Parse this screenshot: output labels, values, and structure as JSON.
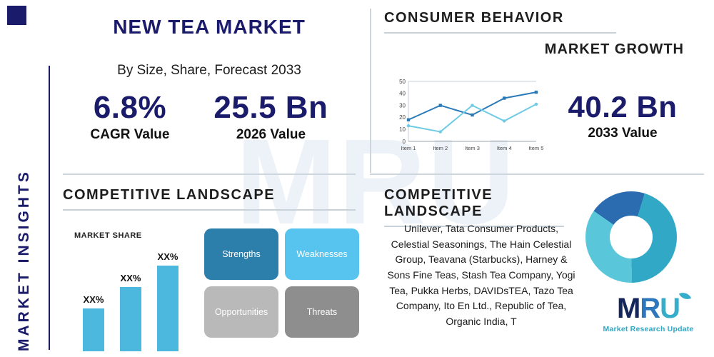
{
  "watermark": "MRU",
  "sidebar": {
    "vertical_title": "MARKET INSIGHTS"
  },
  "top_left": {
    "title": "NEW TEA MARKET",
    "subtitle": "By Size, Share, Forecast 2033",
    "cagr_value": "6.8%",
    "cagr_label": "CAGR Value",
    "value_2026": "25.5 Bn",
    "value_2026_label": "2026 Value"
  },
  "top_right": {
    "heading": "CONSUMER BEHAVIOR",
    "subheading": "MARKET GROWTH",
    "value_2033": "40.2 Bn",
    "value_2033_label": "2033 Value"
  },
  "bottom_left": {
    "heading": "COMPETITIVE LANDSCAPE",
    "market_share_label": "MARKET SHARE",
    "swot": {
      "strengths": "Strengths",
      "weaknesses": "Weaknesses",
      "opportunities": "Opportunities",
      "threats": "Threats"
    }
  },
  "bottom_right": {
    "heading": "COMPETITIVE LANDSCAPE",
    "companies": "Unilever, Tata Consumer Products, Celestial Seasonings, The Hain Celestial Group, Teavana (Starbucks), Harney & Sons Fine Teas, Stash Tea Company, Yogi Tea, Pukka Herbs, DAVIDsTEA, Tazo Tea Company, Ito En Ltd., Republic of Tea, Organic India, T"
  },
  "logo": {
    "m": "M",
    "r": "R",
    "u": "U",
    "tagline": "Market Research Update"
  },
  "colors": {
    "navy": "#1b1b6b",
    "teal": "#2fa8c5",
    "bar_blue": "#4db8dd"
  },
  "chart_data": [
    {
      "type": "line",
      "title": "",
      "categories": [
        "Item 1",
        "Item 2",
        "Item 3",
        "Item 4",
        "Item 5"
      ],
      "series": [
        {
          "name": "series-1",
          "color": "#2a7ab8",
          "values": [
            18,
            30,
            22,
            36,
            41
          ]
        },
        {
          "name": "series-2",
          "color": "#6fcbe4",
          "values": [
            13,
            8,
            30,
            17,
            31
          ]
        }
      ],
      "ylim": [
        0,
        50
      ],
      "yticks": [
        0,
        10,
        20,
        30,
        40,
        50
      ],
      "grid": false,
      "legend": "none"
    },
    {
      "type": "bar",
      "title": "MARKET SHARE",
      "categories": [
        "",
        "",
        ""
      ],
      "values": [
        30,
        45,
        60
      ],
      "labels": [
        "XX%",
        "XX%",
        "XX%"
      ],
      "ylim": [
        0,
        70
      ],
      "color": "#4db8dd"
    },
    {
      "type": "pie",
      "variant": "donut",
      "start_angle": -55,
      "slices": [
        {
          "label": "segment-1",
          "value": 20,
          "color": "#2b6cb0"
        },
        {
          "label": "segment-2",
          "value": 45,
          "color": "#31a9c6"
        },
        {
          "label": "segment-3",
          "value": 35,
          "color": "#59c6da"
        }
      ]
    }
  ]
}
